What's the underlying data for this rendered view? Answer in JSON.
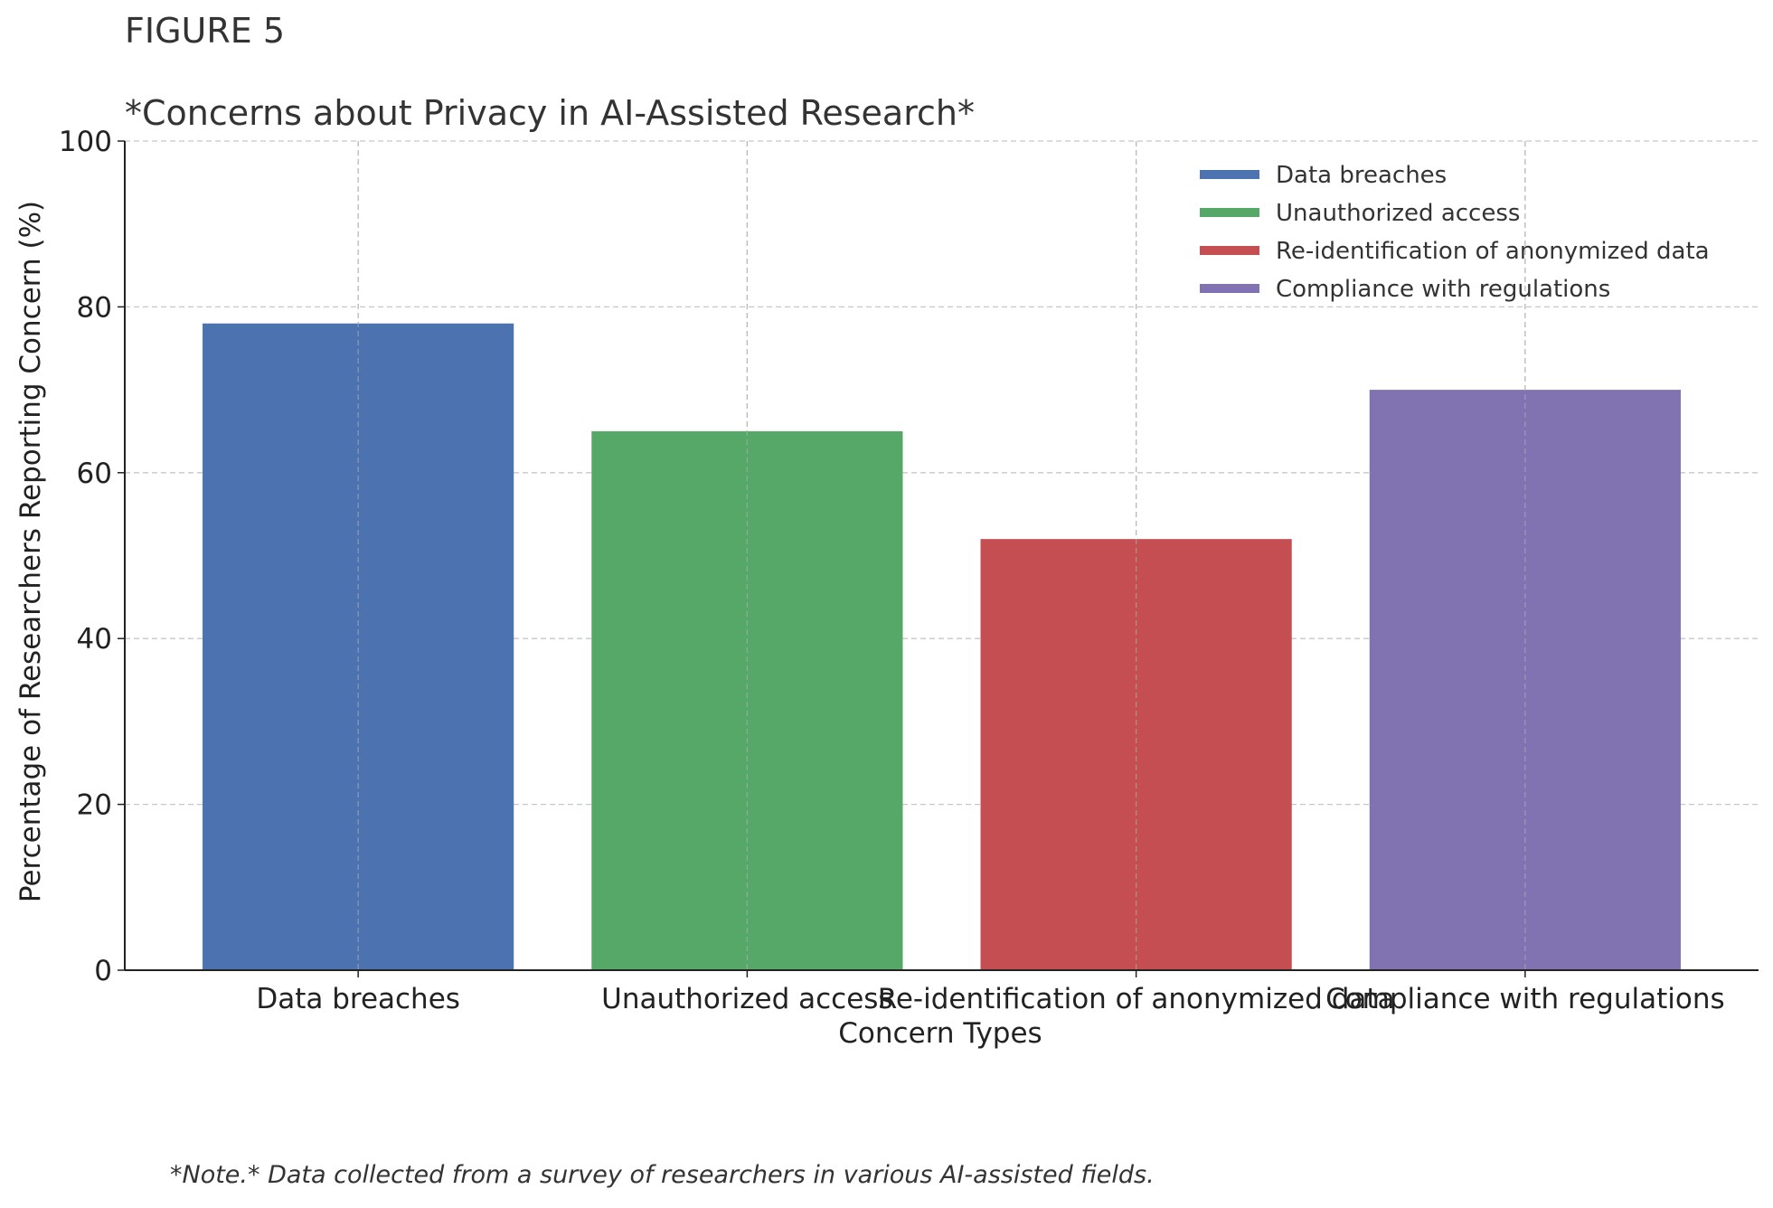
{
  "figure_label": "FIGURE 5",
  "note": "*Note.* Data collected from a survey of researchers in various AI-assisted fields.",
  "chart_data": {
    "type": "bar",
    "title": "*Concerns about Privacy in AI-Assisted Research*",
    "xlabel": "Concern Types",
    "ylabel": "Percentage of Researchers Reporting Concern (%)",
    "categories": [
      "Data breaches",
      "Unauthorized access",
      "Re-identification of anonymized data",
      "Compliance with regulations"
    ],
    "values": [
      78,
      65,
      52,
      70
    ],
    "colors": [
      "#4c72b0",
      "#55a868",
      "#c44e52",
      "#8172b2"
    ],
    "ylim": [
      0,
      100
    ],
    "yticks": [
      0,
      20,
      40,
      60,
      80,
      100
    ],
    "grid": true,
    "legend_position": "top-right"
  }
}
